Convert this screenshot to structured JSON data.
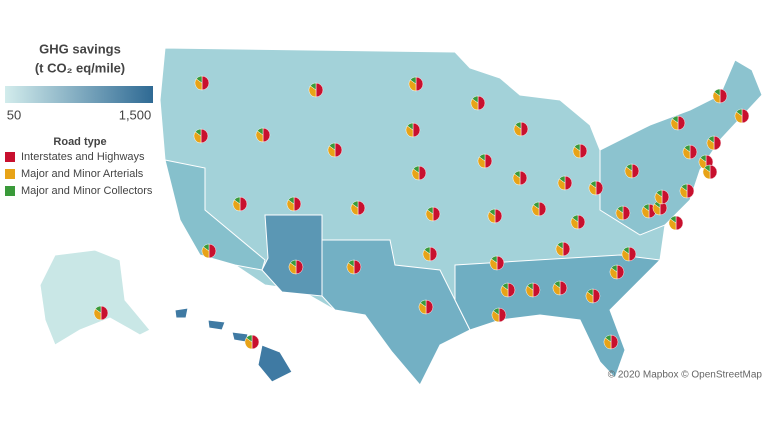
{
  "legend": {
    "title": "GHG savings",
    "subtitle": "(t CO₂ eq/mile)",
    "color_scale": {
      "colors": [
        "#d2ecec",
        "#2f6a94"
      ],
      "ticks": [
        50,
        {
          "value": 1500,
          "label": "1,500"
        }
      ]
    },
    "road_type": {
      "title": "Road type",
      "items": [
        {
          "name": "Interstates and Highways",
          "color": "#c8102e"
        },
        {
          "name": "Major and Minor Arterials",
          "color": "#e8a317"
        },
        {
          "name": "Major and Minor Collectors",
          "color": "#3a9a3a"
        }
      ]
    }
  },
  "attribution": "© 2020 Mapbox © OpenStreetMap"
}
